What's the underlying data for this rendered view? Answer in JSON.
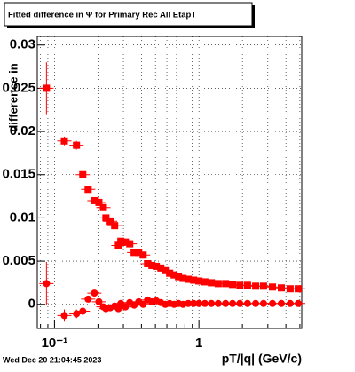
{
  "chart_data": {
    "type": "scatter",
    "title": "Fitted difference in  Ψ  for Primary Rec All EtapT",
    "y_label": "difference in",
    "x_label": "pT/|q| (GeV/c)",
    "timestamp": "Wed Dec 20 21:04:45 2023",
    "log_x": true,
    "grid": true,
    "xlim": [
      0.076,
      5.15
    ],
    "xticks": [
      {
        "value": 0.1,
        "label": "10⁻¹"
      },
      1
    ],
    "xminor": [
      0.08,
      0.09,
      0.2,
      0.3,
      0.4,
      0.5,
      0.6,
      0.7,
      0.8,
      0.9,
      2,
      3,
      4,
      5
    ],
    "ylim": [
      -0.0028,
      0.031
    ],
    "yticks": [
      0,
      0.005,
      0.01,
      0.015,
      0.02,
      0.025,
      0.03
    ],
    "x": [
      0.088,
      0.117,
      0.142,
      0.157,
      0.171,
      0.189,
      0.203,
      0.218,
      0.227,
      0.243,
      0.261,
      0.277,
      0.288,
      0.31,
      0.332,
      0.356,
      0.383,
      0.411,
      0.441,
      0.473,
      0.507,
      0.545,
      0.585,
      0.627,
      0.673,
      0.722,
      0.776,
      0.844,
      0.919,
      1.0,
      1.1,
      1.22,
      1.36,
      1.53,
      1.71,
      1.92,
      2.17,
      2.47,
      2.8,
      3.23,
      3.72,
      4.28,
      4.87
    ],
    "series": [
      {
        "marker": "square",
        "color": "#ff0000",
        "values": [
          0.025,
          0.0189,
          0.0184,
          0.015,
          0.0133,
          0.012,
          0.0118,
          0.0112,
          0.01,
          0.0096,
          0.0091,
          0.0068,
          0.0073,
          0.0072,
          0.007,
          0.006,
          0.006,
          0.0057,
          0.0047,
          0.0045,
          0.0044,
          0.0042,
          0.0039,
          0.0036,
          0.0034,
          0.0032,
          0.003,
          0.0029,
          0.0028,
          0.0027,
          0.0026,
          0.0025,
          0.0024,
          0.0024,
          0.0023,
          0.0022,
          0.0022,
          0.0021,
          0.0021,
          0.002,
          0.0019,
          0.0018,
          0.0018
        ],
        "errors": [
          0.003,
          0.0005,
          0.0005,
          0.0003,
          0.0002,
          0.0002,
          0.0002,
          0.0002,
          0.0002,
          0.0002,
          0.0002,
          0.0002,
          0.0002,
          0.0002,
          0.0002,
          0.0002,
          0.0002,
          0.0002,
          0.0001,
          0.0001,
          0.0001,
          0.0001,
          0.0001,
          0.0001,
          0.0001,
          0.0001,
          0.0001,
          0.0001,
          0.0001,
          0.0001,
          0.0001,
          0.0001,
          0.0001,
          0.0001,
          0.0001,
          0.0001,
          0.0001,
          0.0001,
          0.0001,
          0.0001,
          0.0001,
          0.0001,
          0.0001
        ]
      },
      {
        "marker": "circle",
        "color": "#ff0000",
        "values": [
          0.0024,
          -0.0013,
          -0.0011,
          -0.0008,
          0.0006,
          0.0013,
          0.0003,
          -0.0003,
          -0.0005,
          -0.0004,
          -0.0002,
          -0.0005,
          0.0001,
          -0.0003,
          0.0002,
          -0.0001,
          0.0003,
          0.0,
          0.0005,
          0.0003,
          0.0004,
          0.0002,
          0.0,
          0.0001,
          0.0,
          0.0001,
          0.0,
          0.0001,
          0.0001,
          0.0001,
          0.0001,
          0.0001,
          0.0001,
          0.0001,
          0.0001,
          0.0001,
          0.0001,
          0.0001,
          0.0001,
          0.0001,
          0.0001,
          0.0001,
          0.0001
        ],
        "errors": [
          0.0025,
          0.0007,
          0.0005,
          0.0004,
          0.0003,
          0.0003,
          0.0002,
          0.0002,
          0.0002,
          0.0002,
          0.0002,
          0.0002,
          0.0002,
          0.0002,
          0.0002,
          0.0002,
          0.0002,
          0.0002,
          0.0001,
          0.0001,
          0.0001,
          0.0001,
          0.0001,
          0.0001,
          0.0001,
          0.0001,
          0.0001,
          0.0001,
          0.0001,
          0.0001,
          0.0001,
          0.0001,
          0.0001,
          0.0001,
          0.0001,
          0.0001,
          0.0001,
          0.0001,
          0.0001,
          0.0001,
          0.0001,
          0.0001,
          0.0001
        ]
      }
    ]
  }
}
